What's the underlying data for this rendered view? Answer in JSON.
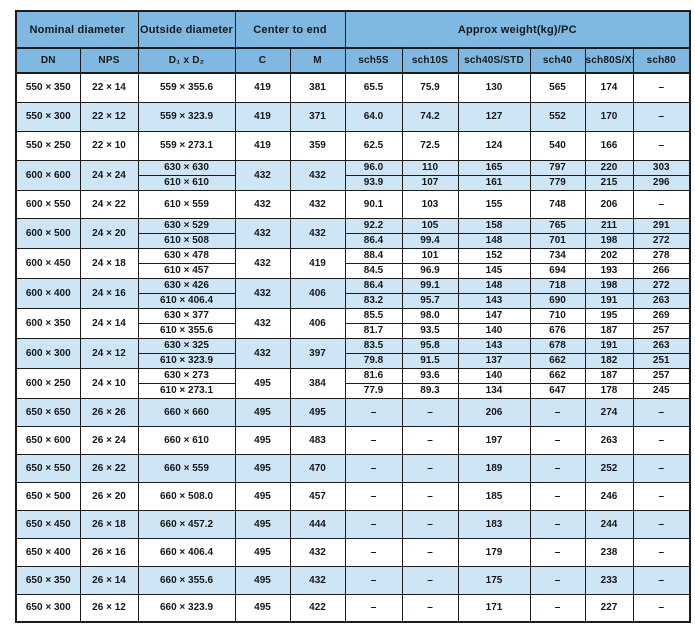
{
  "colors": {
    "header_bg": "#7fb9e2",
    "alt_row_bg": "#cee5f5",
    "row_bg": "#ffffff",
    "border": "#1c1c1c",
    "text": "#15181b"
  },
  "table": {
    "group_headers": [
      {
        "label": "Nominal diameter",
        "colspan": 2
      },
      {
        "label": "Outside diameter",
        "colspan": 1
      },
      {
        "label": "Center to end",
        "colspan": 2
      },
      {
        "label": "Approx weight(kg)/PC",
        "colspan": 6
      }
    ],
    "columns": [
      "DN",
      "NPS",
      "D₁ x D₂",
      "C",
      "M",
      "sch5S",
      "sch10S",
      "sch40S/STD",
      "sch40",
      "sch80S/XS",
      "sch80"
    ],
    "rows": [
      {
        "dn": "550 × 350",
        "nps": "22 × 14",
        "d": [
          "559 × 355.6"
        ],
        "c": "419",
        "m": "381",
        "weights": [
          [
            "65.5",
            "75.9",
            "130",
            "565",
            "174",
            "–"
          ]
        ]
      },
      {
        "dn": "550 × 300",
        "nps": "22 × 12",
        "d": [
          "559 × 323.9"
        ],
        "c": "419",
        "m": "371",
        "weights": [
          [
            "64.0",
            "74.2",
            "127",
            "552",
            "170",
            "–"
          ]
        ]
      },
      {
        "dn": "550 × 250",
        "nps": "22 × 10",
        "d": [
          "559 × 273.1"
        ],
        "c": "419",
        "m": "359",
        "weights": [
          [
            "62.5",
            "72.5",
            "124",
            "540",
            "166",
            "–"
          ]
        ]
      },
      {
        "dn": "600 × 600",
        "nps": "24 × 24",
        "d": [
          "630 × 630",
          "610 × 610"
        ],
        "c": "432",
        "m": "432",
        "weights": [
          [
            "96.0",
            "110",
            "165",
            "797",
            "220",
            "303"
          ],
          [
            "93.9",
            "107",
            "161",
            "779",
            "215",
            "296"
          ]
        ]
      },
      {
        "dn": "600 × 550",
        "nps": "24 × 22",
        "d": [
          "610 × 559"
        ],
        "c": "432",
        "m": "432",
        "weights": [
          [
            "90.1",
            "103",
            "155",
            "748",
            "206",
            "–"
          ]
        ]
      },
      {
        "dn": "600 × 500",
        "nps": "24 × 20",
        "d": [
          "630 × 529",
          "610 × 508"
        ],
        "c": "432",
        "m": "432",
        "weights": [
          [
            "92.2",
            "105",
            "158",
            "765",
            "211",
            "291"
          ],
          [
            "86.4",
            "99.4",
            "148",
            "701",
            "198",
            "272"
          ]
        ]
      },
      {
        "dn": "600 × 450",
        "nps": "24 × 18",
        "d": [
          "630 × 478",
          "610 × 457"
        ],
        "c": "432",
        "m": "419",
        "weights": [
          [
            "88.4",
            "101",
            "152",
            "734",
            "202",
            "278"
          ],
          [
            "84.5",
            "96.9",
            "145",
            "694",
            "193",
            "266"
          ]
        ]
      },
      {
        "dn": "600 × 400",
        "nps": "24 × 16",
        "d": [
          "630 × 426",
          "610 × 406.4"
        ],
        "c": "432",
        "m": "406",
        "weights": [
          [
            "86.4",
            "99.1",
            "148",
            "718",
            "198",
            "272"
          ],
          [
            "83.2",
            "95.7",
            "143",
            "690",
            "191",
            "263"
          ]
        ]
      },
      {
        "dn": "600 × 350",
        "nps": "24 × 14",
        "d": [
          "630 × 377",
          "610 × 355.6"
        ],
        "c": "432",
        "m": "406",
        "weights": [
          [
            "85.5",
            "98.0",
            "147",
            "710",
            "195",
            "269"
          ],
          [
            "81.7",
            "93.5",
            "140",
            "676",
            "187",
            "257"
          ]
        ]
      },
      {
        "dn": "600 × 300",
        "nps": "24 × 12",
        "d": [
          "630 × 325",
          "610 × 323.9"
        ],
        "c": "432",
        "m": "397",
        "weights": [
          [
            "83.5",
            "95.8",
            "143",
            "678",
            "191",
            "263"
          ],
          [
            "79.8",
            "91.5",
            "137",
            "662",
            "182",
            "251"
          ]
        ]
      },
      {
        "dn": "600 × 250",
        "nps": "24 × 10",
        "d": [
          "630 × 273",
          "610 × 273.1"
        ],
        "c": "495",
        "m": "384",
        "weights": [
          [
            "81.6",
            "93.6",
            "140",
            "662",
            "187",
            "257"
          ],
          [
            "77.9",
            "89.3",
            "134",
            "647",
            "178",
            "245"
          ]
        ]
      },
      {
        "dn": "650 × 650",
        "nps": "26 × 26",
        "d": [
          "660 × 660"
        ],
        "c": "495",
        "m": "495",
        "weights": [
          [
            "–",
            "–",
            "206",
            "–",
            "274",
            "–"
          ]
        ]
      },
      {
        "dn": "650 × 600",
        "nps": "26 × 24",
        "d": [
          "660 × 610"
        ],
        "c": "495",
        "m": "483",
        "weights": [
          [
            "–",
            "–",
            "197",
            "–",
            "263",
            "–"
          ]
        ]
      },
      {
        "dn": "650 × 550",
        "nps": "26 × 22",
        "d": [
          "660 × 559"
        ],
        "c": "495",
        "m": "470",
        "weights": [
          [
            "–",
            "–",
            "189",
            "–",
            "252",
            "–"
          ]
        ]
      },
      {
        "dn": "650 × 500",
        "nps": "26 × 20",
        "d": [
          "660 × 508.0"
        ],
        "c": "495",
        "m": "457",
        "weights": [
          [
            "–",
            "–",
            "185",
            "–",
            "246",
            "–"
          ]
        ]
      },
      {
        "dn": "650 × 450",
        "nps": "26 × 18",
        "d": [
          "660 × 457.2"
        ],
        "c": "495",
        "m": "444",
        "weights": [
          [
            "–",
            "–",
            "183",
            "–",
            "244",
            "–"
          ]
        ]
      },
      {
        "dn": "650 × 400",
        "nps": "26 × 16",
        "d": [
          "660 × 406.4"
        ],
        "c": "495",
        "m": "432",
        "weights": [
          [
            "–",
            "–",
            "179",
            "–",
            "238",
            "–"
          ]
        ]
      },
      {
        "dn": "650 × 350",
        "nps": "26 × 14",
        "d": [
          "660 × 355.6"
        ],
        "c": "495",
        "m": "432",
        "weights": [
          [
            "–",
            "–",
            "175",
            "–",
            "233",
            "–"
          ]
        ]
      },
      {
        "dn": "650 × 300",
        "nps": "26 × 12",
        "d": [
          "660 × 323.9"
        ],
        "c": "495",
        "m": "422",
        "weights": [
          [
            "–",
            "–",
            "171",
            "–",
            "227",
            "–"
          ]
        ]
      }
    ]
  }
}
